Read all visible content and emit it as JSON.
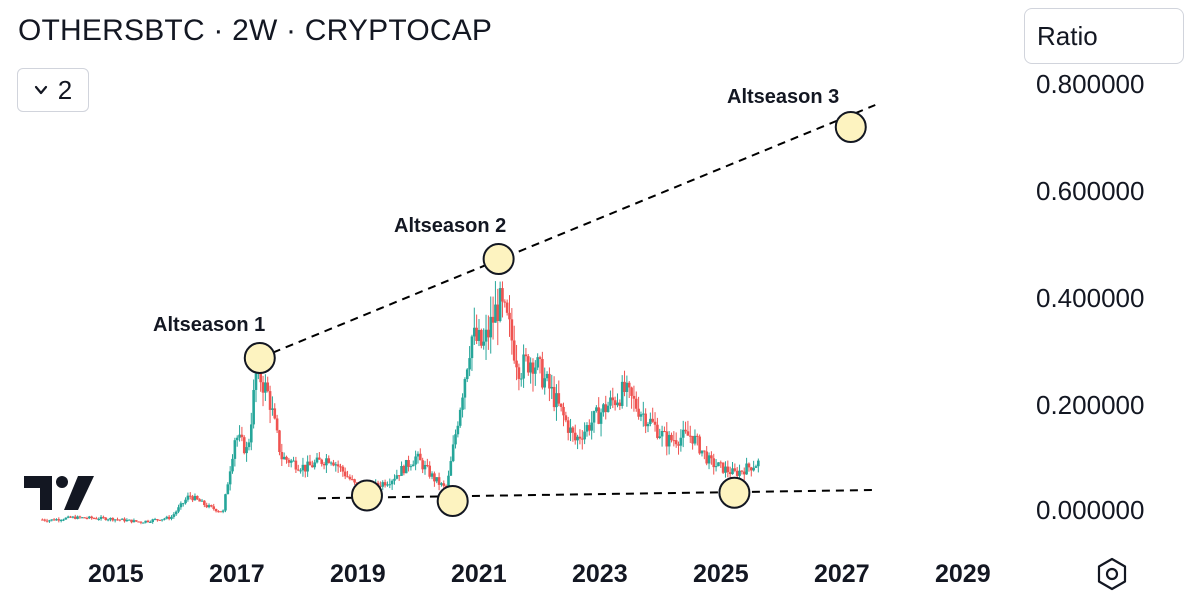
{
  "header": {
    "title": "OTHERSBTC · 2W · CRYPTOCAP",
    "collapse_count": "2",
    "scale_button": "Ratio"
  },
  "icons": {
    "collapse": "chevron-down-icon",
    "settings": "hexagon-settings-icon",
    "logo": "tradingview-logo-icon"
  },
  "chart_data": {
    "type": "candlestick",
    "title": "OTHERSBTC · 2W · CRYPTOCAP",
    "x_ticks": [
      "2015",
      "2017",
      "2019",
      "2021",
      "2023",
      "2025",
      "2027",
      "2029"
    ],
    "y_ticks": [
      "0.800000",
      "0.600000",
      "0.400000",
      "0.200000",
      "0.000000"
    ],
    "xlim": [
      2014.2,
      2030.3
    ],
    "ylim": [
      -0.04,
      0.88
    ],
    "grid": false,
    "colors": {
      "up": "#26a69a",
      "down": "#ef5350",
      "marker_fill": "#fdf3c0",
      "line": "#000000"
    },
    "anchors": [
      [
        2014.2,
        0.03
      ],
      [
        2014.6,
        0.025
      ],
      [
        2015.0,
        0.03
      ],
      [
        2015.6,
        0.028
      ],
      [
        2016.1,
        0.022
      ],
      [
        2016.6,
        0.03
      ],
      [
        2016.9,
        0.07
      ],
      [
        2017.2,
        0.05
      ],
      [
        2017.45,
        0.04
      ],
      [
        2017.65,
        0.18
      ],
      [
        2017.85,
        0.15
      ],
      [
        2018.0,
        0.3
      ],
      [
        2018.2,
        0.25
      ],
      [
        2018.4,
        0.14
      ],
      [
        2018.8,
        0.12
      ],
      [
        2019.2,
        0.14
      ],
      [
        2019.6,
        0.09
      ],
      [
        2019.8,
        0.08
      ],
      [
        2020.2,
        0.1
      ],
      [
        2020.6,
        0.14
      ],
      [
        2020.9,
        0.1
      ],
      [
        2021.1,
        0.08
      ],
      [
        2021.3,
        0.22
      ],
      [
        2021.5,
        0.36
      ],
      [
        2021.7,
        0.34
      ],
      [
        2021.95,
        0.42
      ],
      [
        2022.1,
        0.38
      ],
      [
        2022.3,
        0.3
      ],
      [
        2022.5,
        0.32
      ],
      [
        2022.8,
        0.26
      ],
      [
        2023.2,
        0.17
      ],
      [
        2023.6,
        0.22
      ],
      [
        2024.0,
        0.26
      ],
      [
        2024.3,
        0.22
      ],
      [
        2024.7,
        0.17
      ],
      [
        2025.1,
        0.18
      ],
      [
        2025.4,
        0.13
      ],
      [
        2025.8,
        0.11
      ],
      [
        2026.0,
        0.12
      ],
      [
        2026.2,
        0.13
      ]
    ],
    "trendlines": [
      {
        "name": "upper",
        "from": [
          2018.05,
          0.32
        ],
        "to": [
          2028.1,
          0.78
        ]
      },
      {
        "name": "lower",
        "from": [
          2019.0,
          0.065
        ],
        "to": [
          2028.1,
          0.08
        ]
      }
    ],
    "markers": [
      {
        "label": "Altseason 1",
        "x": 2018.05,
        "y": 0.32
      },
      {
        "label": "Altseason 2",
        "x": 2021.95,
        "y": 0.5
      },
      {
        "label": "Altseason 3",
        "x": 2027.7,
        "y": 0.74
      },
      {
        "label": "",
        "x": 2019.8,
        "y": 0.07
      },
      {
        "label": "",
        "x": 2021.2,
        "y": 0.06
      },
      {
        "label": "",
        "x": 2025.8,
        "y": 0.075
      }
    ]
  }
}
